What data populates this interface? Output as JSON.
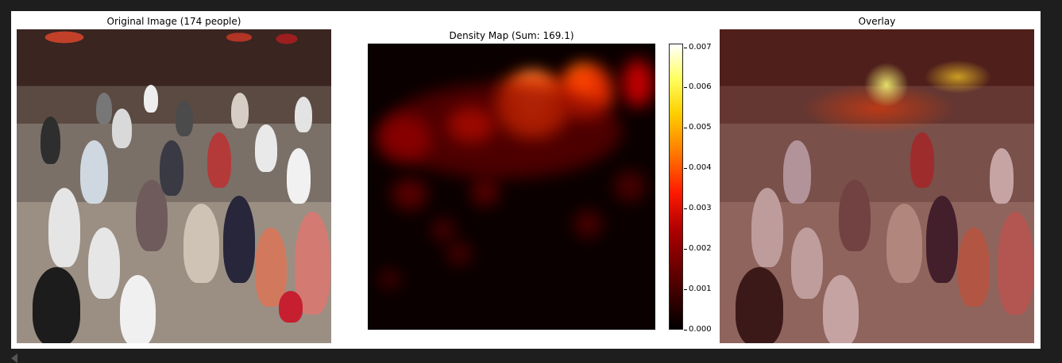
{
  "panels": {
    "left_title": "Original Image (174 people)",
    "middle_title": "Density Map (Sum: 169.1)",
    "right_title": "Overlay"
  },
  "colorbar": {
    "ticks": [
      "0.000",
      "0.001",
      "0.002",
      "0.003",
      "0.004",
      "0.005",
      "0.006",
      "0.007"
    ]
  },
  "icons": {
    "bottom_corner": "scroll-left-icon"
  },
  "colors": {
    "background": "#1e1e1e",
    "figure": "#ffffff",
    "density_low": "#000000",
    "density_high": "#ffffff"
  }
}
